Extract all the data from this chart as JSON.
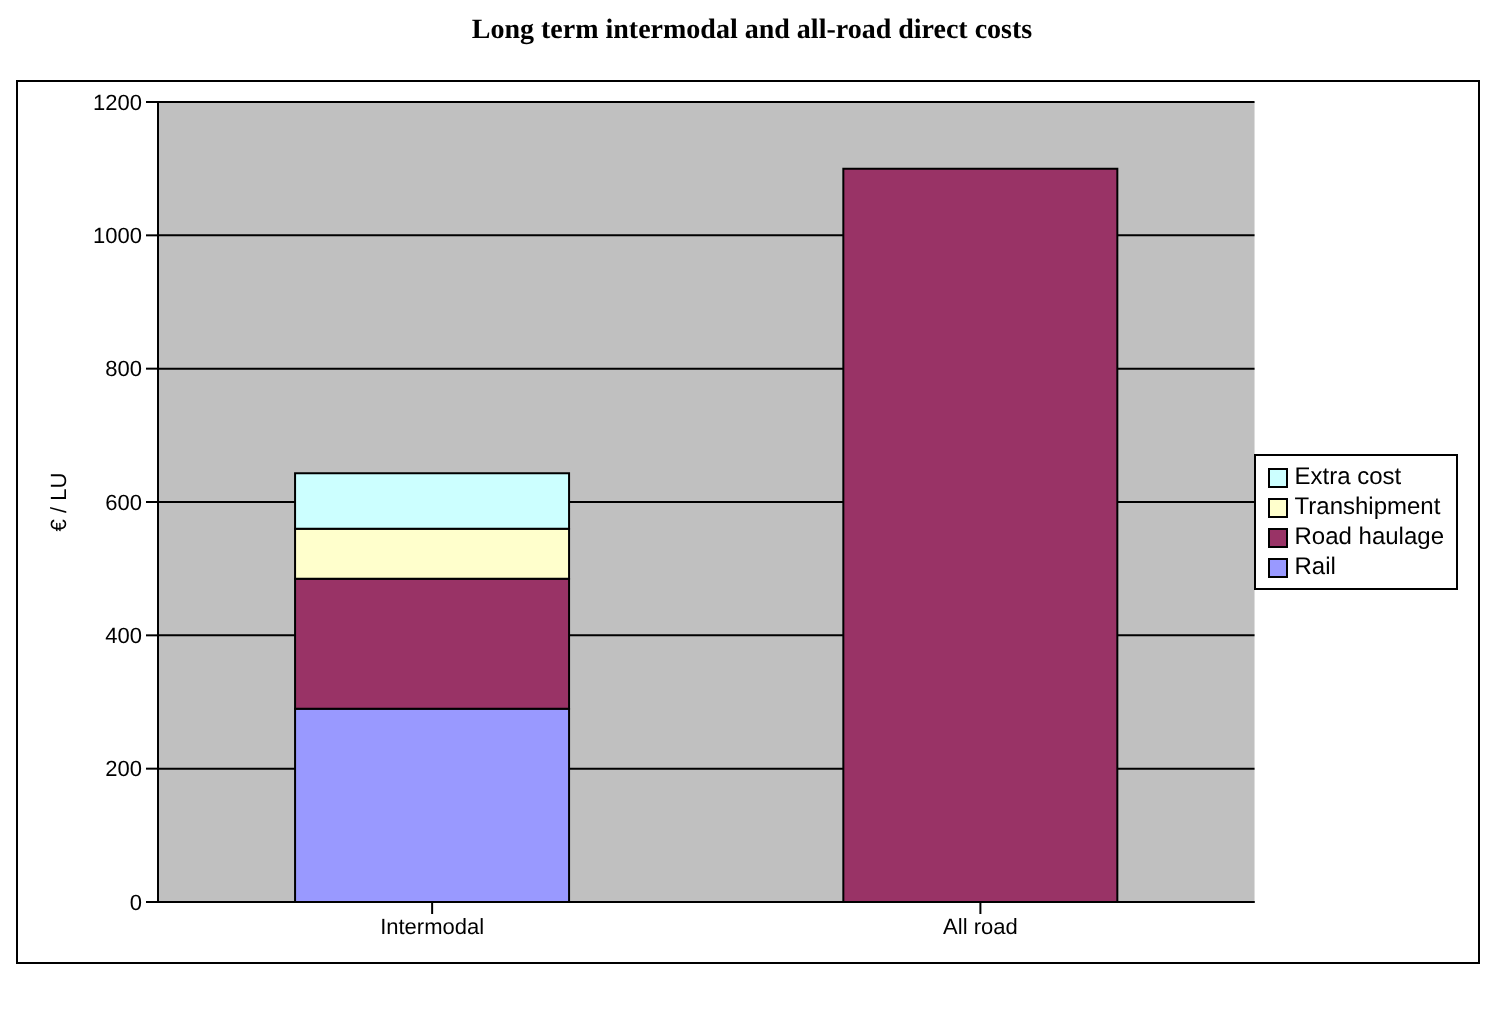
{
  "chart_data": {
    "type": "bar",
    "title": "Long term intermodal and all-road direct costs",
    "ylabel": "€ / LU",
    "categories": [
      "Intermodal",
      "All road"
    ],
    "stacked": true,
    "series": [
      {
        "name": "Rail",
        "color": "#9999ff",
        "values": [
          290,
          null
        ]
      },
      {
        "name": "Road haulage",
        "color": "#993366",
        "values": [
          195,
          1100
        ]
      },
      {
        "name": "Transhipment",
        "color": "#ffffcc",
        "values": [
          75,
          null
        ]
      },
      {
        "name": "Extra cost",
        "color": "#ccffff",
        "values": [
          83,
          null
        ]
      }
    ],
    "ylim": [
      0,
      1200
    ],
    "yticks": [
      0,
      200,
      400,
      600,
      800,
      1000,
      1200
    ],
    "grid": "y",
    "legend": "right"
  }
}
